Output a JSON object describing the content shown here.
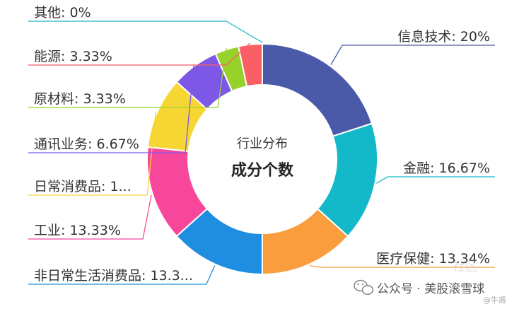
{
  "chart_data": {
    "type": "pie",
    "donut": true,
    "title": "行业分布",
    "subtitle": "成分个数",
    "slices": [
      {
        "label": "信息技术: 20%",
        "value": 20,
        "color": "#4a5aa8",
        "side": "right"
      },
      {
        "label": "金融: 16.67%",
        "value": 16.67,
        "color": "#13b9c9",
        "side": "right"
      },
      {
        "label": "医疗保健: 13.34%",
        "value": 13.34,
        "color": "#fa9d3c",
        "side": "right"
      },
      {
        "label": "非日常生活消费品: 13.3...",
        "value": 13.33,
        "color": "#1f8ee0",
        "side": "left"
      },
      {
        "label": "工业: 13.33%",
        "value": 13.33,
        "color": "#f7479a",
        "side": "left"
      },
      {
        "label": "日常消费品: 1...",
        "value": 10,
        "color": "#f6d633",
        "side": "left"
      },
      {
        "label": "通讯业务: 6.67%",
        "value": 6.67,
        "color": "#7d58e6",
        "side": "left"
      },
      {
        "label": "原材料: 3.33%",
        "value": 3.33,
        "color": "#97d22b",
        "side": "left"
      },
      {
        "label": "能源: 3.33%",
        "value": 3.33,
        "color": "#fa5f66",
        "side": "left"
      },
      {
        "label": "其他: 0%",
        "value": 0,
        "color": "#1eb5c4",
        "side": "left"
      }
    ]
  },
  "watermark": {
    "text": "公众号 · 美股滚雪球",
    "small": "@牛盾",
    "ghost": "社区"
  }
}
